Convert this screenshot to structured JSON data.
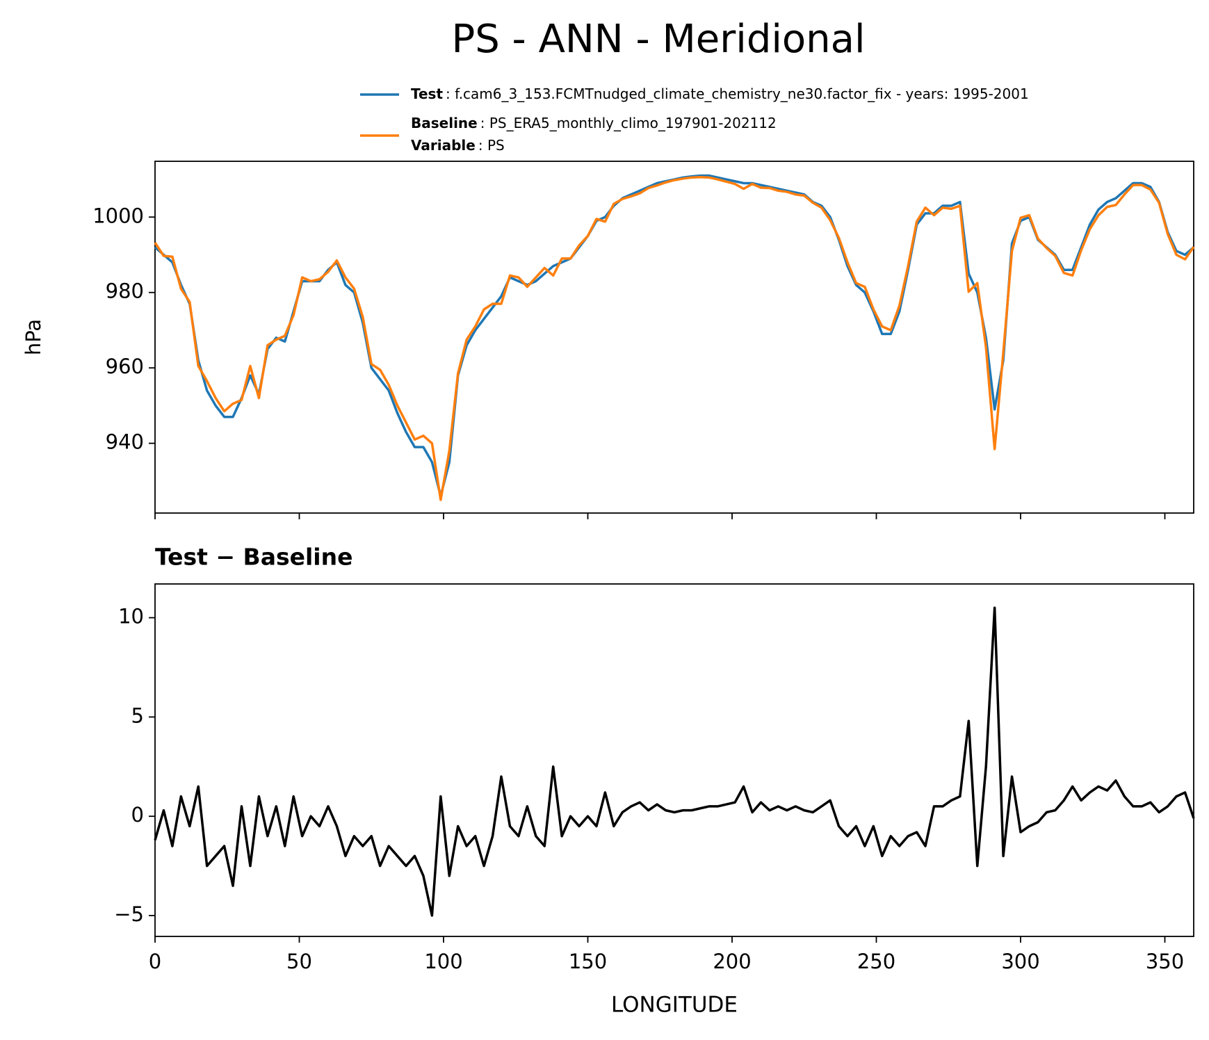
{
  "title": "PS - ANN - Meridional",
  "chart_data": [
    {
      "type": "line",
      "ylabel": "hPa",
      "legend": {
        "name": "Variable",
        "label": ": PS"
      },
      "xlim": [
        0,
        360
      ],
      "ylim": [
        921.5,
        1014.8
      ],
      "yticks": [
        940,
        960,
        980,
        1000
      ],
      "x": [
        0,
        3,
        6,
        9,
        12,
        15,
        18,
        21,
        24,
        27,
        30,
        33,
        36,
        39,
        42,
        45,
        48,
        51,
        54,
        57,
        60,
        63,
        66,
        69,
        72,
        75,
        78,
        81,
        84,
        87,
        90,
        93,
        96,
        99,
        102,
        105,
        108,
        111,
        114,
        117,
        120,
        123,
        126,
        129,
        132,
        135,
        138,
        141,
        144,
        147,
        150,
        153,
        156,
        159,
        162,
        165,
        168,
        171,
        174,
        177,
        180,
        183,
        186,
        189,
        192,
        195,
        198,
        201,
        204,
        207,
        210,
        213,
        216,
        219,
        222,
        225,
        228,
        231,
        234,
        237,
        240,
        243,
        246,
        249,
        252,
        255,
        258,
        261,
        264,
        267,
        270,
        273,
        276,
        279,
        282,
        285,
        288,
        291,
        294,
        297,
        300,
        303,
        306,
        309,
        312,
        315,
        318,
        321,
        324,
        327,
        330,
        333,
        336,
        339,
        342,
        345,
        348,
        351,
        354,
        357,
        360
      ],
      "series": [
        {
          "name": "Test",
          "label": ": f.cam6_3_153.FCMTnudged_climate_chemistry_ne30.factor_fix - years: 1995-2001",
          "color": "#1f77b4",
          "values": [
            992,
            990,
            988,
            982,
            977,
            962,
            954,
            950,
            947,
            947,
            952,
            958,
            953,
            965,
            968,
            967,
            975,
            983,
            983,
            983,
            986,
            988,
            982,
            980,
            972,
            960,
            957,
            954,
            948,
            943,
            939,
            939,
            935,
            926,
            935,
            958,
            966,
            970,
            973,
            976,
            979,
            984,
            983,
            982,
            983,
            985,
            987,
            988,
            989,
            992,
            995,
            999,
            1000,
            1003,
            1005,
            1006,
            1007,
            1008,
            1009,
            1009.5,
            1010,
            1010.5,
            1010.8,
            1011,
            1011,
            1010.5,
            1010,
            1009.5,
            1009,
            1009,
            1008.5,
            1008,
            1007.5,
            1007,
            1006.5,
            1006,
            1004,
            1003,
            1000,
            994,
            987,
            982,
            980,
            975,
            969,
            969,
            975,
            986,
            998,
            1001,
            1001,
            1003,
            1003,
            1004,
            985,
            980,
            968,
            949,
            962,
            993,
            999,
            1000,
            994,
            992,
            990,
            986,
            986,
            992,
            998,
            1002,
            1004,
            1005,
            1007,
            1009,
            1009,
            1008,
            1004,
            996,
            991,
            990,
            992
          ]
        },
        {
          "name": "Baseline",
          "label": ": PS_ERA5_monthly_climo_197901-202112",
          "color": "#ff7f0e",
          "values": [
            993.2,
            989.7,
            989.5,
            981,
            977.5,
            960.5,
            956.5,
            952,
            948.5,
            950.5,
            951.5,
            960.5,
            952,
            966,
            967.5,
            968.5,
            974,
            984,
            983,
            983.5,
            985.5,
            988.5,
            984,
            981,
            973.5,
            961,
            959.5,
            955.5,
            950,
            945.5,
            941,
            942,
            940,
            925,
            938,
            958.5,
            967.5,
            971,
            975.5,
            977,
            977,
            984.5,
            984,
            981.5,
            984,
            986.5,
            984.5,
            989,
            989,
            992.5,
            995,
            999.5,
            998.8,
            1003.5,
            1004.8,
            1005.5,
            1006.3,
            1007.7,
            1008.4,
            1009.2,
            1009.8,
            1010.2,
            1010.5,
            1010.6,
            1010.5,
            1010,
            1009.4,
            1008.8,
            1007.5,
            1008.8,
            1007.8,
            1007.7,
            1007,
            1006.7,
            1006,
            1005.7,
            1003.8,
            1002.5,
            999.2,
            994.5,
            988,
            982.5,
            981.5,
            975.5,
            971,
            970,
            976.5,
            987,
            998.8,
            1002.5,
            1000.5,
            1002.5,
            1002.2,
            1003,
            980.2,
            982.5,
            965.5,
            938.5,
            964,
            991,
            999.8,
            1000.5,
            994.3,
            991.8,
            989.7,
            985.2,
            984.5,
            991.2,
            996.8,
            1000.5,
            1002.7,
            1003.2,
            1006,
            1008.5,
            1008.5,
            1007.3,
            1003.8,
            995.5,
            990,
            988.8,
            992.1
          ]
        }
      ]
    },
    {
      "type": "line",
      "title": "Test − Baseline",
      "xlabel": "LONGITUDE",
      "xlim": [
        0,
        360
      ],
      "xticks": [
        0,
        50,
        100,
        150,
        200,
        250,
        300,
        350
      ],
      "ylim": [
        -6.05,
        11.7
      ],
      "yticks": [
        {
          "value": -5,
          "label": "−5"
        },
        0,
        5,
        10
      ],
      "x": [
        0,
        3,
        6,
        9,
        12,
        15,
        18,
        21,
        24,
        27,
        30,
        33,
        36,
        39,
        42,
        45,
        48,
        51,
        54,
        57,
        60,
        63,
        66,
        69,
        72,
        75,
        78,
        81,
        84,
        87,
        90,
        93,
        96,
        99,
        102,
        105,
        108,
        111,
        114,
        117,
        120,
        123,
        126,
        129,
        132,
        135,
        138,
        141,
        144,
        147,
        150,
        153,
        156,
        159,
        162,
        165,
        168,
        171,
        174,
        177,
        180,
        183,
        186,
        189,
        192,
        195,
        198,
        201,
        204,
        207,
        210,
        213,
        216,
        219,
        222,
        225,
        228,
        231,
        234,
        237,
        240,
        243,
        246,
        249,
        252,
        255,
        258,
        261,
        264,
        267,
        270,
        273,
        276,
        279,
        282,
        285,
        288,
        291,
        294,
        297,
        300,
        303,
        306,
        309,
        312,
        315,
        318,
        321,
        324,
        327,
        330,
        333,
        336,
        339,
        342,
        345,
        348,
        351,
        354,
        357,
        360
      ],
      "series": [
        {
          "color": "#000000",
          "values": [
            -1.2,
            0.3,
            -1.5,
            1,
            -0.5,
            1.5,
            -2.5,
            -2,
            -1.5,
            -3.5,
            0.5,
            -2.5,
            1,
            -1,
            0.5,
            -1.5,
            1,
            -1,
            0,
            -0.5,
            0.5,
            -0.5,
            -2,
            -1,
            -1.5,
            -1,
            -2.5,
            -1.5,
            -2,
            -2.5,
            -2,
            -3,
            -5,
            1,
            -3,
            -0.5,
            -1.5,
            -1,
            -2.5,
            -1,
            2,
            -0.5,
            -1,
            0.5,
            -1,
            -1.5,
            2.5,
            -1,
            0,
            -0.5,
            0,
            -0.5,
            1.2,
            -0.5,
            0.2,
            0.5,
            0.7,
            0.3,
            0.6,
            0.3,
            0.2,
            0.3,
            0.3,
            0.4,
            0.5,
            0.5,
            0.6,
            0.7,
            1.5,
            0.2,
            0.7,
            0.3,
            0.5,
            0.3,
            0.5,
            0.3,
            0.2,
            0.5,
            0.8,
            -0.5,
            -1,
            -0.5,
            -1.5,
            -0.5,
            -2,
            -1,
            -1.5,
            -1,
            -0.8,
            -1.5,
            0.5,
            0.5,
            0.8,
            1,
            4.8,
            -2.5,
            2.5,
            10.5,
            -2,
            2,
            -0.8,
            -0.5,
            -0.3,
            0.2,
            0.3,
            0.8,
            1.5,
            0.8,
            1.2,
            1.5,
            1.3,
            1.8,
            1,
            0.5,
            0.5,
            0.7,
            0.2,
            0.5,
            1,
            1.2,
            -0.1
          ]
        }
      ]
    }
  ]
}
